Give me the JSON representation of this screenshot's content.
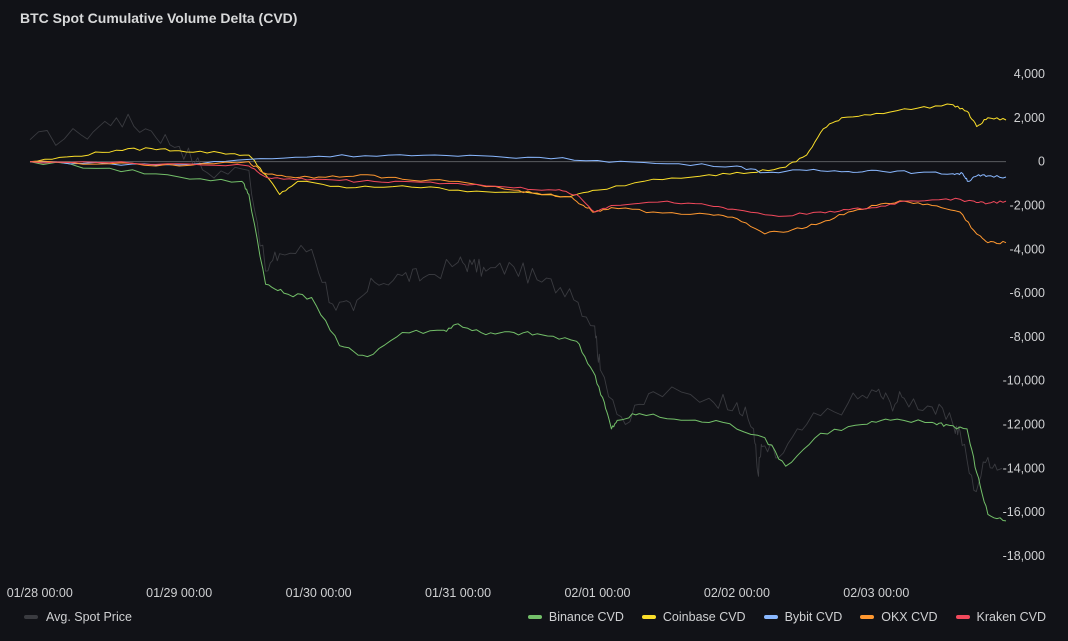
{
  "chart_data": {
    "type": "line",
    "title": "BTC Spot Cumulative Volume Delta (CVD)",
    "x_ticks": [
      "01/28 00:00",
      "01/29 00:00",
      "01/30 00:00",
      "01/31 00:00",
      "02/01 00:00",
      "02/02 00:00",
      "02/03 00:00"
    ],
    "y_ticks": [
      4000,
      2000,
      0,
      -2000,
      -4000,
      -6000,
      -8000,
      -10000,
      -12000,
      -14000,
      -16000,
      -18000
    ],
    "y_tick_labels": [
      "4,000",
      "2,000",
      "0",
      "-2,000",
      "-4,000",
      "-6,000",
      "-8,000",
      "-10,000",
      "-12,000",
      "-14,000",
      "-16,000",
      "-18,000"
    ],
    "ylim": [
      -19000,
      4500
    ],
    "x_range_days": [
      -0.07,
      6.93
    ],
    "zero_line": true,
    "legend_placement": "bottom",
    "series": [
      {
        "name": "Avg. Spot Price",
        "color": "#3a3b40",
        "axis": "hidden",
        "x": [
          -0.07,
          0.3,
          0.55,
          0.8,
          1.0,
          1.2,
          1.5,
          1.62,
          1.72,
          1.95,
          2.1,
          2.25,
          2.4,
          2.6,
          2.75,
          3.0,
          3.1,
          3.2,
          3.4,
          3.6,
          3.8,
          3.98,
          4.02,
          4.2,
          4.4,
          4.8,
          5.0,
          5.12,
          5.15,
          5.18,
          5.3,
          5.5,
          5.8,
          6.0,
          6.1,
          6.2,
          6.4,
          6.55,
          6.6,
          6.7,
          6.8,
          6.9
        ],
        "y": [
          1000,
          1200,
          2000,
          1400,
          700,
          -500,
          -400,
          -5000,
          -4200,
          -4000,
          -6500,
          -6800,
          -5500,
          -5200,
          -5300,
          -4600,
          -4700,
          -5000,
          -4800,
          -5500,
          -5800,
          -7500,
          -9500,
          -12000,
          -10500,
          -10800,
          -11000,
          -12200,
          -14200,
          -13000,
          -13500,
          -12000,
          -11000,
          -10500,
          -11000,
          -10800,
          -11200,
          -12000,
          -12300,
          -15000,
          -13500,
          -14000
        ]
      },
      {
        "name": "Binance CVD",
        "color": "#73bf69",
        "x": [
          -0.07,
          0.5,
          1.0,
          1.45,
          1.5,
          1.62,
          1.75,
          1.95,
          2.15,
          2.35,
          2.6,
          2.9,
          3.0,
          3.2,
          3.4,
          3.6,
          3.85,
          3.97,
          4.05,
          4.1,
          4.15,
          4.3,
          4.6,
          4.9,
          5.2,
          5.35,
          5.6,
          5.9,
          6.1,
          6.4,
          6.5,
          6.65,
          6.72,
          6.8,
          6.93
        ],
        "y": [
          0,
          -300,
          -700,
          -900,
          -1500,
          -5600,
          -6000,
          -6200,
          -8400,
          -8900,
          -7800,
          -7700,
          -7400,
          -7900,
          -7800,
          -7900,
          -8200,
          -9600,
          -11000,
          -12200,
          -11800,
          -11500,
          -11800,
          -11900,
          -12600,
          -13900,
          -12400,
          -12000,
          -11800,
          -11900,
          -12000,
          -12200,
          -14200,
          -16100,
          -16400
        ]
      },
      {
        "name": "Coinbase CVD",
        "color": "#fade2a",
        "x": [
          -0.07,
          0.25,
          0.55,
          0.8,
          1.0,
          1.3,
          1.5,
          1.62,
          1.72,
          1.85,
          2.2,
          2.6,
          3.0,
          3.4,
          3.8,
          4.0,
          4.4,
          4.8,
          5.1,
          5.35,
          5.5,
          5.62,
          5.75,
          6.0,
          6.3,
          6.55,
          6.65,
          6.72,
          6.8,
          6.93
        ],
        "y": [
          0,
          250,
          520,
          600,
          500,
          400,
          300,
          -600,
          -1500,
          -900,
          -1200,
          -1100,
          -1300,
          -1400,
          -1600,
          -1300,
          -800,
          -600,
          -500,
          -250,
          300,
          1500,
          2000,
          2200,
          2450,
          2600,
          2300,
          1600,
          2000,
          1900
        ]
      },
      {
        "name": "Bybit CVD",
        "color": "#8ab8ff",
        "x": [
          -0.07,
          0.5,
          1.0,
          1.5,
          2.0,
          2.5,
          3.0,
          3.5,
          4.0,
          4.5,
          5.0,
          5.2,
          5.5,
          5.8,
          6.0,
          6.3,
          6.55,
          6.62,
          6.66,
          6.72,
          6.8,
          6.93
        ],
        "y": [
          0,
          -100,
          -150,
          100,
          250,
          300,
          250,
          200,
          50,
          -100,
          -200,
          -500,
          -400,
          -450,
          -400,
          -500,
          -550,
          -550,
          -900,
          -650,
          -650,
          -700
        ]
      },
      {
        "name": "OKX CVD",
        "color": "#ff9830",
        "x": [
          -0.07,
          0.5,
          1.0,
          1.5,
          1.6,
          1.8,
          2.0,
          2.3,
          2.6,
          3.0,
          3.4,
          3.6,
          3.8,
          3.9,
          3.98,
          4.1,
          4.4,
          4.8,
          5.0,
          5.2,
          5.4,
          5.6,
          5.8,
          6.0,
          6.2,
          6.4,
          6.6,
          6.72,
          6.8,
          6.93
        ],
        "y": [
          0,
          -100,
          -200,
          0,
          -500,
          -700,
          -700,
          -600,
          -800,
          -900,
          -1300,
          -1500,
          -1600,
          -2000,
          -2300,
          -2100,
          -2300,
          -2400,
          -2600,
          -3300,
          -3100,
          -2800,
          -2300,
          -2000,
          -1800,
          -2000,
          -2300,
          -3300,
          -3700,
          -3700
        ]
      },
      {
        "name": "Kraken CVD",
        "color": "#f2495c",
        "x": [
          -0.07,
          0.5,
          1.0,
          1.5,
          1.62,
          1.75,
          2.0,
          2.3,
          2.6,
          3.0,
          3.4,
          3.7,
          3.85,
          3.98,
          4.1,
          4.5,
          4.8,
          5.0,
          5.3,
          5.6,
          5.8,
          6.0,
          6.2,
          6.5,
          6.7,
          6.8,
          6.93
        ],
        "y": [
          0,
          -50,
          -100,
          -200,
          -700,
          -800,
          -800,
          -900,
          -900,
          -1000,
          -1200,
          -1300,
          -1500,
          -2300,
          -2000,
          -1800,
          -2000,
          -2200,
          -2500,
          -2300,
          -2200,
          -2100,
          -1800,
          -1700,
          -1800,
          -1900,
          -1800
        ]
      }
    ]
  }
}
